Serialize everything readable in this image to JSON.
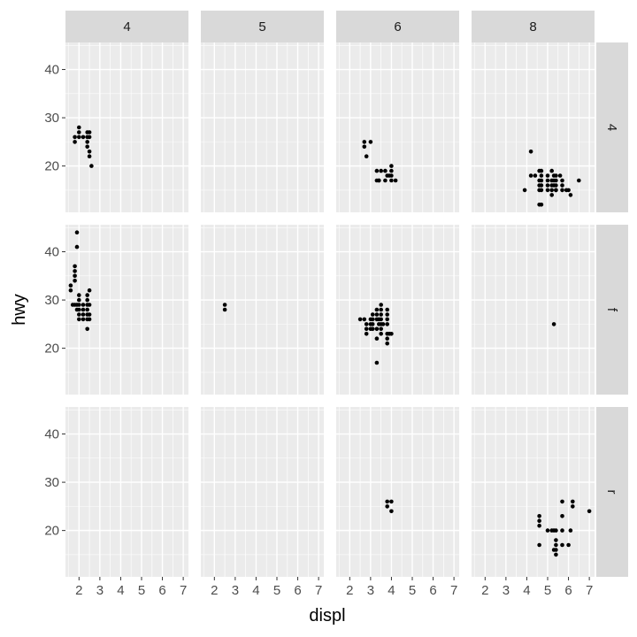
{
  "chart_data": {
    "type": "scatter",
    "facet_type": "grid",
    "xlabel": "displ",
    "ylabel": "hwy",
    "col_facets": [
      "4",
      "5",
      "6",
      "8"
    ],
    "row_facets": [
      "4",
      "f",
      "r"
    ],
    "x_ticks": [
      2,
      3,
      4,
      5,
      6,
      7
    ],
    "y_ticks": [
      20,
      30,
      40
    ],
    "xlim": [
      1.35,
      7.25
    ],
    "ylim": [
      10.4,
      45.6
    ],
    "grid": true,
    "panels": [
      {
        "row": "4",
        "col": "4",
        "points": [
          [
            1.8,
            26
          ],
          [
            1.8,
            25
          ],
          [
            2.0,
            28
          ],
          [
            2.0,
            27
          ],
          [
            2.0,
            26
          ],
          [
            2.2,
            26
          ],
          [
            2.4,
            27
          ],
          [
            2.4,
            26
          ],
          [
            2.4,
            25
          ],
          [
            2.4,
            24
          ],
          [
            2.5,
            23
          ],
          [
            2.5,
            22
          ],
          [
            2.6,
            20
          ],
          [
            2.5,
            26
          ],
          [
            2.5,
            27
          ]
        ]
      },
      {
        "row": "4",
        "col": "5",
        "points": []
      },
      {
        "row": "4",
        "col": "6",
        "points": [
          [
            2.7,
            25
          ],
          [
            2.7,
            24
          ],
          [
            2.8,
            22
          ],
          [
            3.0,
            25
          ],
          [
            3.3,
            17
          ],
          [
            3.4,
            17
          ],
          [
            3.5,
            19
          ],
          [
            3.7,
            19
          ],
          [
            3.7,
            17
          ],
          [
            3.8,
            18
          ],
          [
            3.9,
            18
          ],
          [
            4.0,
            20
          ],
          [
            4.0,
            19
          ],
          [
            4.0,
            17
          ],
          [
            4.2,
            17
          ],
          [
            4.0,
            18
          ],
          [
            3.3,
            19
          ],
          [
            3.4,
            17
          ]
        ]
      },
      {
        "row": "4",
        "col": "8",
        "points": [
          [
            3.9,
            15
          ],
          [
            4.2,
            18
          ],
          [
            4.2,
            23
          ],
          [
            4.4,
            18
          ],
          [
            4.6,
            17
          ],
          [
            4.6,
            19
          ],
          [
            4.6,
            16
          ],
          [
            4.6,
            15
          ],
          [
            4.6,
            12
          ],
          [
            4.7,
            19
          ],
          [
            4.7,
            18
          ],
          [
            4.7,
            17
          ],
          [
            4.7,
            16
          ],
          [
            4.7,
            15
          ],
          [
            4.7,
            12
          ],
          [
            5.0,
            17
          ],
          [
            5.0,
            16
          ],
          [
            5.0,
            15
          ],
          [
            5.2,
            19
          ],
          [
            5.2,
            17
          ],
          [
            5.2,
            16
          ],
          [
            5.2,
            15
          ],
          [
            5.2,
            14
          ],
          [
            5.3,
            17
          ],
          [
            5.3,
            16
          ],
          [
            5.4,
            18
          ],
          [
            5.4,
            17
          ],
          [
            5.4,
            16
          ],
          [
            5.4,
            15
          ],
          [
            5.6,
            18
          ],
          [
            5.7,
            17
          ],
          [
            5.7,
            16
          ],
          [
            5.7,
            15
          ],
          [
            5.9,
            15
          ],
          [
            6.0,
            15
          ],
          [
            6.1,
            14
          ],
          [
            6.5,
            17
          ],
          [
            5.0,
            18
          ],
          [
            5.3,
            18
          ],
          [
            5.4,
            15
          ]
        ]
      },
      {
        "row": "f",
        "col": "4",
        "points": [
          [
            1.6,
            32
          ],
          [
            1.6,
            33
          ],
          [
            1.7,
            29
          ],
          [
            1.8,
            29
          ],
          [
            1.8,
            34
          ],
          [
            1.8,
            36
          ],
          [
            1.8,
            37
          ],
          [
            1.8,
            35
          ],
          [
            1.9,
            44
          ],
          [
            1.9,
            41
          ],
          [
            1.9,
            29
          ],
          [
            1.9,
            28
          ],
          [
            2.0,
            26
          ],
          [
            2.0,
            27
          ],
          [
            2.0,
            29
          ],
          [
            2.0,
            30
          ],
          [
            2.0,
            31
          ],
          [
            2.2,
            29
          ],
          [
            2.2,
            27
          ],
          [
            2.2,
            26
          ],
          [
            2.4,
            31
          ],
          [
            2.4,
            30
          ],
          [
            2.4,
            29
          ],
          [
            2.4,
            28
          ],
          [
            2.4,
            27
          ],
          [
            2.4,
            26
          ],
          [
            2.4,
            24
          ],
          [
            2.5,
            32
          ],
          [
            2.5,
            29
          ],
          [
            2.5,
            27
          ],
          [
            2.5,
            26
          ],
          [
            2.2,
            28
          ],
          [
            2.0,
            28
          ]
        ]
      },
      {
        "row": "f",
        "col": "5",
        "points": [
          [
            2.5,
            29
          ],
          [
            2.5,
            28
          ]
        ]
      },
      {
        "row": "f",
        "col": "6",
        "points": [
          [
            2.5,
            26
          ],
          [
            2.7,
            26
          ],
          [
            2.8,
            24
          ],
          [
            2.8,
            23
          ],
          [
            2.8,
            25
          ],
          [
            3.0,
            26
          ],
          [
            3.0,
            24
          ],
          [
            3.1,
            27
          ],
          [
            3.1,
            26
          ],
          [
            3.1,
            25
          ],
          [
            3.3,
            28
          ],
          [
            3.3,
            27
          ],
          [
            3.3,
            26
          ],
          [
            3.3,
            24
          ],
          [
            3.3,
            22
          ],
          [
            3.3,
            17
          ],
          [
            3.4,
            26
          ],
          [
            3.4,
            25
          ],
          [
            3.5,
            29
          ],
          [
            3.5,
            28
          ],
          [
            3.5,
            27
          ],
          [
            3.5,
            26
          ],
          [
            3.5,
            25
          ],
          [
            3.5,
            24
          ],
          [
            3.5,
            23
          ],
          [
            3.6,
            25
          ],
          [
            3.8,
            28
          ],
          [
            3.8,
            27
          ],
          [
            3.8,
            26
          ],
          [
            3.8,
            25
          ],
          [
            3.8,
            23
          ],
          [
            3.8,
            22
          ],
          [
            3.8,
            21
          ],
          [
            3.9,
            23
          ],
          [
            4.0,
            23
          ],
          [
            3.0,
            25
          ],
          [
            3.1,
            24
          ]
        ]
      },
      {
        "row": "f",
        "col": "8",
        "points": [
          [
            5.3,
            25
          ]
        ]
      },
      {
        "row": "r",
        "col": "4",
        "points": []
      },
      {
        "row": "r",
        "col": "5",
        "points": []
      },
      {
        "row": "r",
        "col": "6",
        "points": [
          [
            3.8,
            26
          ],
          [
            3.8,
            25
          ],
          [
            4.0,
            26
          ],
          [
            4.0,
            24
          ]
        ]
      },
      {
        "row": "r",
        "col": "8",
        "points": [
          [
            4.6,
            17
          ],
          [
            4.6,
            21
          ],
          [
            4.6,
            22
          ],
          [
            4.6,
            23
          ],
          [
            5.0,
            20
          ],
          [
            5.2,
            20
          ],
          [
            5.3,
            20
          ],
          [
            5.4,
            18
          ],
          [
            5.4,
            17
          ],
          [
            5.4,
            16
          ],
          [
            5.4,
            15
          ],
          [
            5.4,
            20
          ],
          [
            5.7,
            26
          ],
          [
            5.7,
            23
          ],
          [
            5.7,
            17
          ],
          [
            6.0,
            17
          ],
          [
            6.1,
            20
          ],
          [
            6.2,
            26
          ],
          [
            6.2,
            25
          ],
          [
            7.0,
            24
          ],
          [
            5.7,
            20
          ],
          [
            5.3,
            16
          ]
        ]
      }
    ]
  }
}
